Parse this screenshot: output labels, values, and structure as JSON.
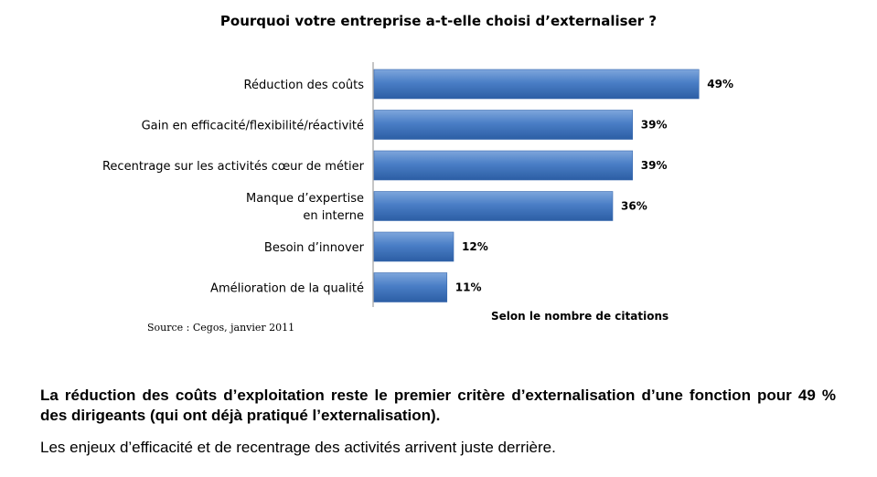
{
  "chart_data": {
    "type": "bar",
    "orientation": "horizontal",
    "title": "Pourquoi votre entreprise a-t-elle choisi d’externaliser ?",
    "categories": [
      [
        "Réduction des coûts"
      ],
      [
        "Gain en efficacité/flexibilité/réactivité"
      ],
      [
        "Recentrage sur les activités cœur de métier"
      ],
      [
        "Manque d’expertise",
        "en interne"
      ],
      [
        "Besoin d’innover"
      ],
      [
        "Amélioration de la qualité"
      ]
    ],
    "values": [
      49,
      39,
      39,
      36,
      12,
      11
    ],
    "value_labels": [
      "49%",
      "39%",
      "39%",
      "36%",
      "12%",
      "11%"
    ],
    "xlim": [
      0,
      50
    ],
    "axis_note": "Selon le nombre de citations",
    "bar_color": "#4a7ec6",
    "grid": false
  },
  "source": "Source : Cegos, janvier 2011",
  "summary": {
    "bold": "La réduction des coûts d’exploitation reste le premier critère d’externalisation d’une fonction pour 49 % des dirigeants (qui ont déjà pratiqué l’externalisation).",
    "normal": "Les enjeux d’efficacité et de recentrage des activités arrivent juste derrière."
  }
}
